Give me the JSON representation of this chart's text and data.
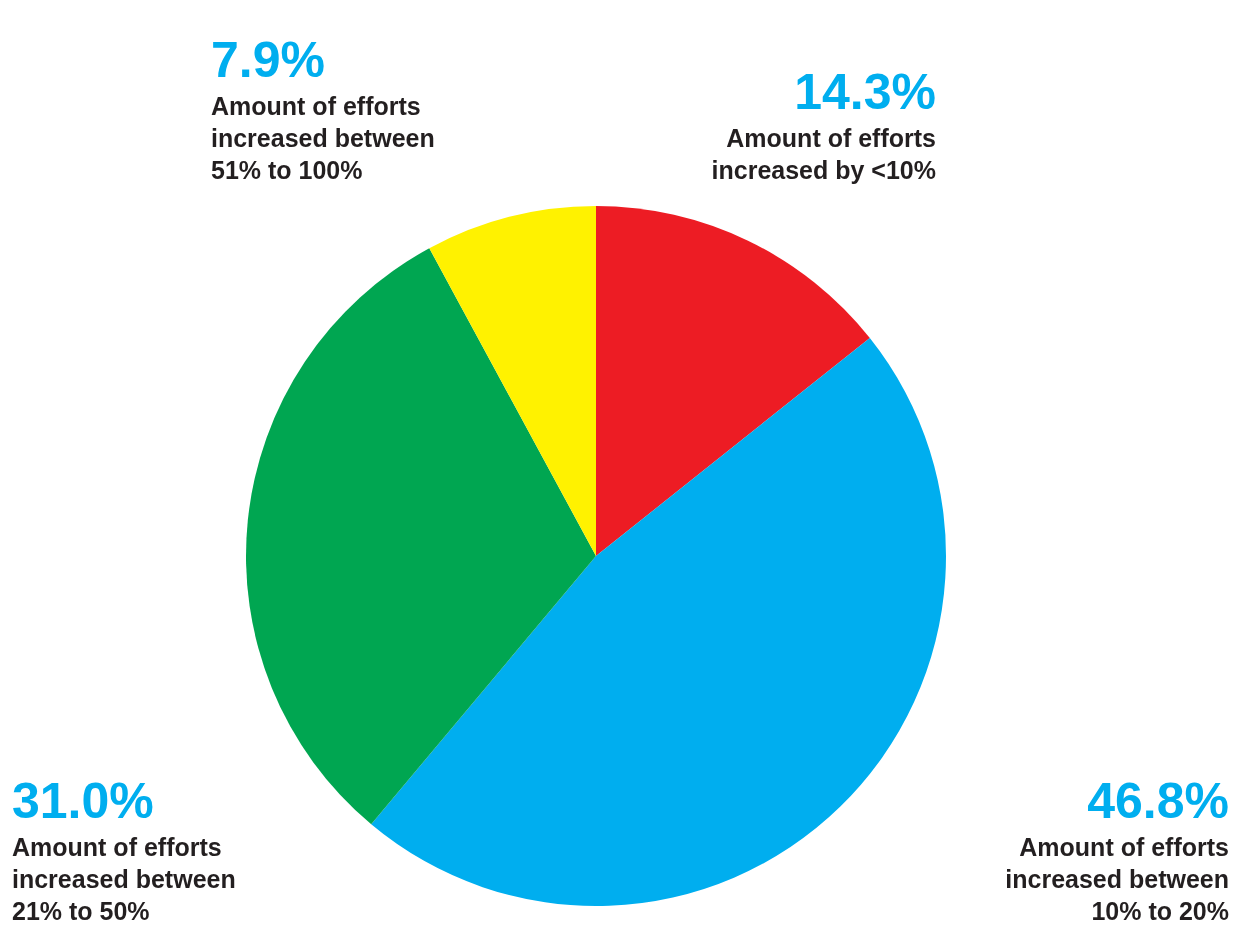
{
  "chart_data": {
    "type": "pie",
    "categories": [
      "Amount of efforts\nincreased by <10%",
      "Amount of efforts\nincreased between\n10% to 20%",
      "Amount of efforts\nincreased between\n21% to 50%",
      "Amount of efforts\nincreased between\n51% to 100%"
    ],
    "values": [
      14.3,
      46.8,
      31.0,
      7.9
    ],
    "value_labels": [
      "14.3%",
      "46.8%",
      "31.0%",
      "7.9%"
    ],
    "colors": [
      "#ed1c24",
      "#00aeef",
      "#00a651",
      "#fff200"
    ]
  }
}
